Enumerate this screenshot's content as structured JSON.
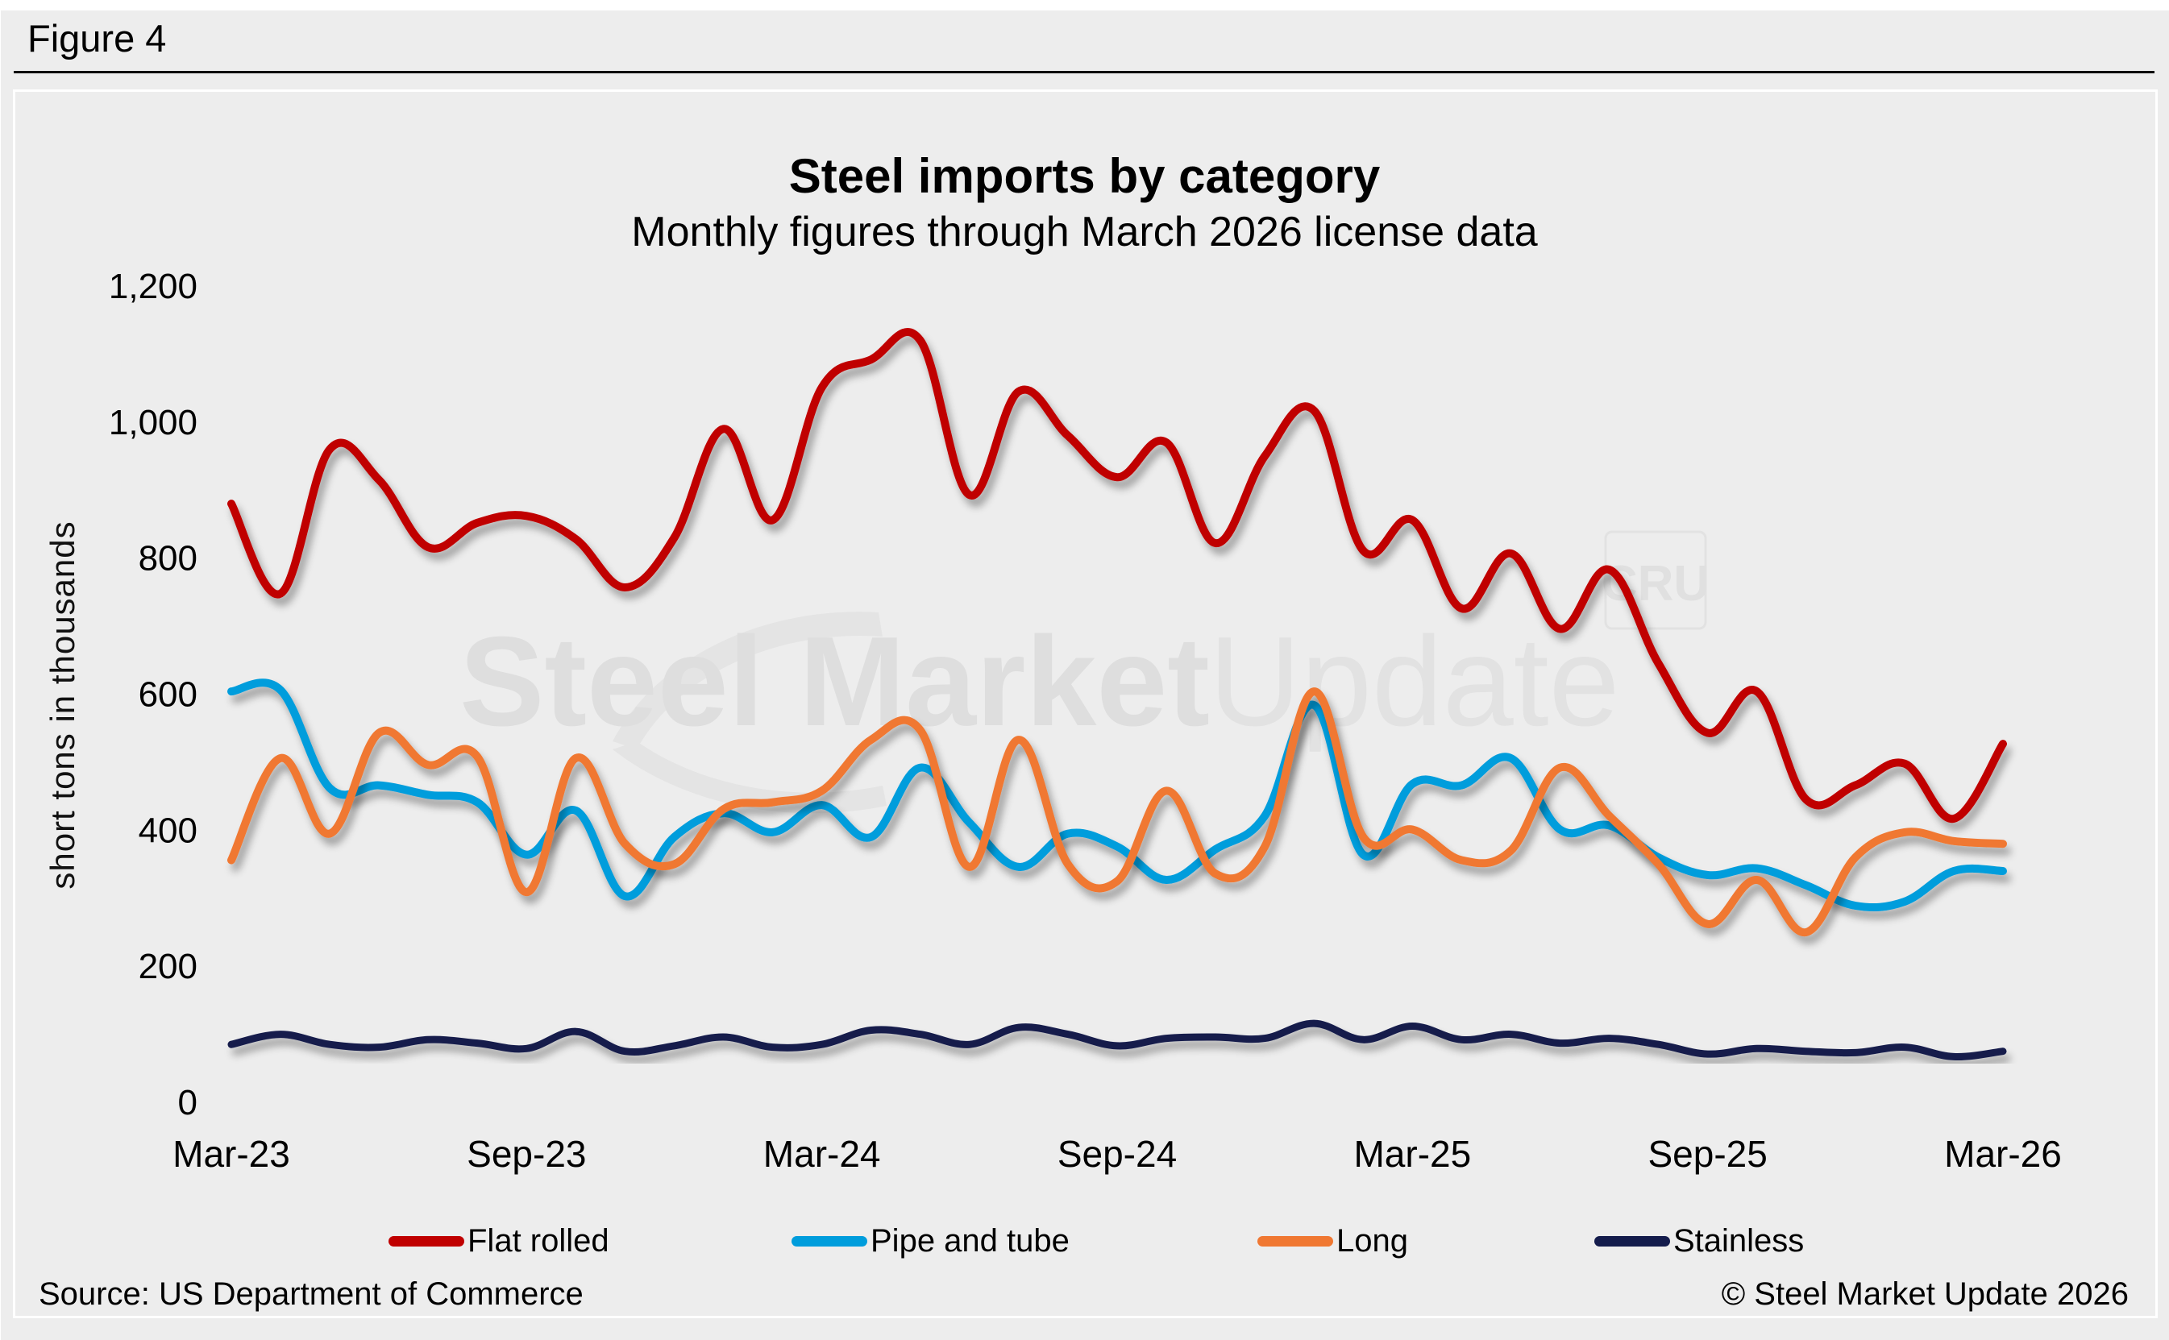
{
  "figure_label": "Figure 4",
  "watermark": {
    "brand": "Steel Market",
    "brand_light": "Update",
    "logo": "CRU"
  },
  "footer": {
    "source": "Source: US Department of Commerce",
    "copyright": "© Steel Market Update 2026"
  },
  "chart_data": {
    "type": "line",
    "title": "Steel imports by category",
    "subtitle": "Monthly figures through March 2026 license data",
    "xlabel": "",
    "ylabel": "short tons in thousands",
    "ylim": [
      0,
      1200
    ],
    "yticks": [
      0,
      200,
      400,
      600,
      800,
      1000,
      1200
    ],
    "ytick_labels": [
      "0",
      "200",
      "400",
      "600",
      "800",
      "1,000",
      "1,200"
    ],
    "xtick_labels": [
      "Mar-23",
      "Sep-23",
      "Mar-24",
      "Sep-24",
      "Mar-25",
      "Sep-25",
      "Mar-26"
    ],
    "xtick_index": [
      0,
      6,
      12,
      18,
      24,
      30,
      36
    ],
    "grid": false,
    "legend_position": "bottom",
    "smooth": true,
    "x": [
      "Mar-23",
      "Apr-23",
      "May-23",
      "Jun-23",
      "Jul-23",
      "Aug-23",
      "Sep-23",
      "Oct-23",
      "Nov-23",
      "Dec-23",
      "Jan-24",
      "Feb-24",
      "Mar-24",
      "Apr-24",
      "May-24",
      "Jun-24",
      "Jul-24",
      "Aug-24",
      "Sep-24",
      "Oct-24",
      "Nov-24",
      "Dec-24",
      "Jan-25",
      "Feb-25",
      "Mar-25",
      "Apr-25",
      "May-25",
      "Jun-25",
      "Jul-25",
      "Aug-25",
      "Sep-25",
      "Oct-25",
      "Nov-25",
      "Dec-25",
      "Jan-26",
      "Feb-26",
      "Mar-26"
    ],
    "series": [
      {
        "name": "Flat rolled",
        "color": "#c00000",
        "values": [
          880,
          748,
          960,
          915,
          816,
          852,
          862,
          828,
          757,
          830,
          990,
          856,
          1051,
          1092,
          1120,
          893,
          1045,
          980,
          919,
          970,
          822,
          950,
          1017,
          811,
          856,
          726,
          807,
          696,
          783,
          645,
          543,
          604,
          445,
          466,
          498,
          417,
          527
        ]
      },
      {
        "name": "Pipe and tube",
        "color": "#009ddc",
        "values": [
          604,
          606,
          462,
          466,
          452,
          441,
          364,
          429,
          303,
          390,
          425,
          397,
          437,
          390,
          492,
          411,
          346,
          395,
          376,
          327,
          372,
          421,
          584,
          364,
          468,
          466,
          506,
          401,
          407,
          360,
          334,
          344,
          319,
          289,
          295,
          340,
          340
        ]
      },
      {
        "name": "Long",
        "color": "#f07832",
        "values": [
          356,
          506,
          395,
          543,
          496,
          508,
          309,
          506,
          380,
          350,
          431,
          441,
          458,
          533,
          547,
          346,
          533,
          350,
          325,
          458,
          336,
          376,
          604,
          390,
          401,
          356,
          370,
          492,
          421,
          350,
          262,
          327,
          250,
          360,
          397,
          384,
          380
        ]
      },
      {
        "name": "Stainless",
        "color": "#141c4c",
        "values": [
          85,
          100,
          85,
          81,
          92,
          87,
          79,
          104,
          75,
          83,
          96,
          81,
          85,
          106,
          100,
          85,
          110,
          100,
          83,
          94,
          96,
          94,
          116,
          92,
          112,
          92,
          100,
          87,
          94,
          85,
          71,
          79,
          75,
          73,
          81,
          67,
          75
        ]
      }
    ]
  }
}
